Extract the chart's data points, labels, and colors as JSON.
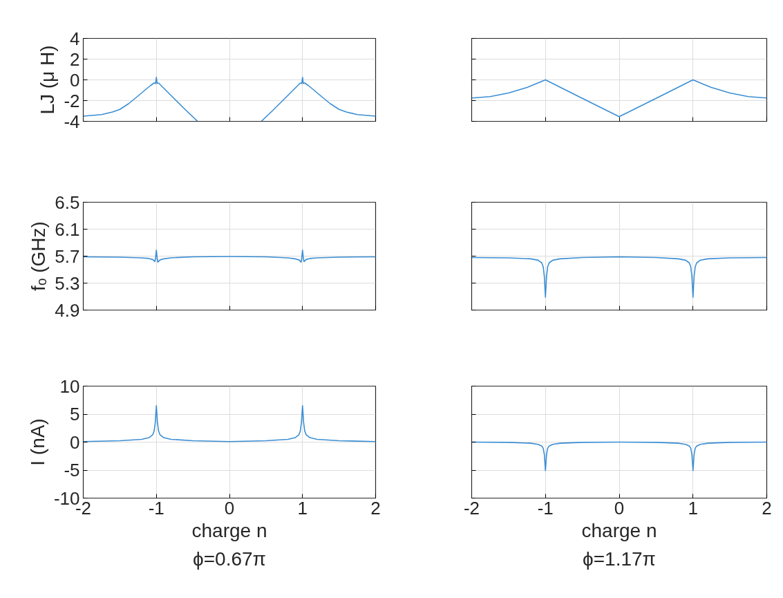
{
  "chart_data": [
    {
      "type": "line",
      "ylabel": "LJ (μ H)",
      "color": "#3b8ed4",
      "grid": true,
      "tick_labels": "y",
      "xlim": [
        -2,
        2
      ],
      "ylim": [
        -4,
        4
      ],
      "xticks": [
        -2,
        -1,
        0,
        1,
        2
      ],
      "yticks": [
        -4,
        -2,
        0,
        2,
        4
      ],
      "x": [
        -2,
        -1.75,
        -1.6,
        -1.5,
        -1.38,
        -1.25,
        -1.15,
        -1.08,
        -1.03,
        -1.01,
        -1.0,
        -0.99,
        -0.97,
        -0.8,
        -0.6,
        -0.436,
        0,
        0.436,
        0.6,
        0.8,
        0.97,
        0.99,
        1.0,
        1.01,
        1.03,
        1.08,
        1.15,
        1.25,
        1.38,
        1.5,
        1.6,
        1.75,
        2
      ],
      "values": [
        -3.5,
        -3.35,
        -3.1,
        -2.85,
        -2.3,
        -1.55,
        -0.95,
        -0.55,
        -0.3,
        -0.35,
        0.25,
        -0.35,
        -0.3,
        -1.5,
        -2.9,
        -4,
        null,
        -4,
        -2.9,
        -1.5,
        -0.3,
        -0.35,
        0.25,
        -0.35,
        -0.3,
        -0.55,
        -0.95,
        -1.55,
        -2.3,
        -2.85,
        -3.1,
        -3.35,
        -3.5
      ]
    },
    {
      "type": "line",
      "color": "#3b8ed4",
      "grid": true,
      "tick_labels": false,
      "xlim": [
        -2,
        2
      ],
      "ylim": [
        -4,
        4
      ],
      "xticks": [
        -2,
        -1,
        0,
        1,
        2
      ],
      "yticks": [
        -4,
        -2,
        0,
        2,
        4
      ],
      "x": [
        -2,
        -1.75,
        -1.5,
        -1.25,
        -1,
        -0.5,
        0,
        0.5,
        1,
        1.25,
        1.5,
        1.75,
        2
      ],
      "values": [
        -1.75,
        -1.62,
        -1.27,
        -0.74,
        0,
        -1.78,
        -3.55,
        -1.78,
        0,
        -0.74,
        -1.27,
        -1.62,
        -1.75
      ]
    },
    {
      "type": "line",
      "ylabel": "fₒ (GHz)",
      "color": "#3b8ed4",
      "grid": true,
      "tick_labels": "y",
      "xlim": [
        -2,
        2
      ],
      "ylim": [
        4.9,
        6.5
      ],
      "xticks": [
        -2,
        -1,
        0,
        1,
        2
      ],
      "yticks": [
        4.9,
        5.3,
        5.7,
        6.1,
        6.5
      ],
      "x": [
        -2,
        -1.5,
        -1.2,
        -1.1,
        -1.05,
        -1.02,
        -1.01,
        -1.0,
        -0.99,
        -0.98,
        -0.95,
        -0.9,
        -0.8,
        -0.5,
        0,
        0.5,
        0.8,
        0.9,
        0.95,
        0.98,
        0.99,
        1.0,
        1.01,
        1.02,
        1.05,
        1.1,
        1.2,
        1.5,
        2
      ],
      "values": [
        5.69,
        5.685,
        5.675,
        5.665,
        5.65,
        5.62,
        5.68,
        5.79,
        5.68,
        5.61,
        5.645,
        5.66,
        5.675,
        5.69,
        5.695,
        5.69,
        5.675,
        5.66,
        5.645,
        5.61,
        5.68,
        5.79,
        5.68,
        5.62,
        5.65,
        5.665,
        5.675,
        5.685,
        5.69
      ]
    },
    {
      "type": "line",
      "color": "#3b8ed4",
      "grid": true,
      "tick_labels": false,
      "xlim": [
        -2,
        2
      ],
      "ylim": [
        4.9,
        6.5
      ],
      "xticks": [
        -2,
        -1,
        0,
        1,
        2
      ],
      "yticks": [
        4.9,
        5.3,
        5.7,
        6.1,
        6.5
      ],
      "x": [
        -2,
        -1.5,
        -1.2,
        -1.1,
        -1.05,
        -1.03,
        -1.015,
        -1.0,
        -0.985,
        -0.97,
        -0.95,
        -0.9,
        -0.8,
        -0.5,
        0,
        0.5,
        0.8,
        0.9,
        0.95,
        0.97,
        0.985,
        1.0,
        1.015,
        1.03,
        1.05,
        1.1,
        1.2,
        1.5,
        2
      ],
      "values": [
        5.68,
        5.675,
        5.66,
        5.64,
        5.6,
        5.54,
        5.4,
        5.09,
        5.4,
        5.54,
        5.6,
        5.64,
        5.66,
        5.68,
        5.69,
        5.68,
        5.66,
        5.64,
        5.6,
        5.54,
        5.4,
        5.09,
        5.4,
        5.54,
        5.6,
        5.64,
        5.66,
        5.675,
        5.68
      ]
    },
    {
      "type": "line",
      "xlabel": "charge n",
      "ylabel": "I (nA)",
      "annotations": [
        "ϕ=0.67π"
      ],
      "color": "#3b8ed4",
      "grid": true,
      "xlim": [
        -2,
        2
      ],
      "ylim": [
        -10,
        10
      ],
      "xticks": [
        -2,
        -1,
        0,
        1,
        2
      ],
      "yticks": [
        -10,
        -5,
        0,
        5,
        10
      ],
      "x": [
        -2,
        -1.5,
        -1.2,
        -1.1,
        -1.05,
        -1.03,
        -1.015,
        -1.0,
        -0.985,
        -0.97,
        -0.95,
        -0.9,
        -0.8,
        -0.5,
        0,
        0.5,
        0.8,
        0.9,
        0.95,
        0.97,
        0.985,
        1.0,
        1.015,
        1.03,
        1.05,
        1.1,
        1.2,
        1.5,
        2
      ],
      "values": [
        0.1,
        0.25,
        0.5,
        0.8,
        1.3,
        2,
        3.5,
        6.5,
        3.5,
        2,
        1.3,
        0.8,
        0.5,
        0.25,
        0.1,
        0.25,
        0.5,
        0.8,
        1.3,
        2,
        3.5,
        6.5,
        3.5,
        2,
        1.3,
        0.8,
        0.5,
        0.25,
        0.1
      ]
    },
    {
      "type": "line",
      "xlabel": "charge n",
      "annotations": [
        "ϕ=1.17π"
      ],
      "color": "#3b8ed4",
      "grid": true,
      "tick_labels": "x",
      "xlim": [
        -2,
        2
      ],
      "ylim": [
        -10,
        10
      ],
      "xticks": [
        -2,
        -1,
        0,
        1,
        2
      ],
      "yticks": [
        -10,
        -5,
        0,
        5,
        10
      ],
      "x": [
        -2,
        -1.5,
        -1.2,
        -1.1,
        -1.05,
        -1.03,
        -1.015,
        -1.0,
        -0.985,
        -0.97,
        -0.95,
        -0.9,
        -0.8,
        -0.5,
        0,
        0.5,
        0.8,
        0.9,
        0.95,
        0.97,
        0.985,
        1.0,
        1.015,
        1.03,
        1.05,
        1.1,
        1.2,
        1.5,
        2
      ],
      "values": [
        0,
        -0.05,
        -0.2,
        -0.4,
        -0.7,
        -1.1,
        -2.2,
        -5.1,
        -2.2,
        -1.1,
        -0.7,
        -0.4,
        -0.2,
        -0.05,
        0,
        -0.05,
        -0.2,
        -0.4,
        -0.7,
        -1.1,
        -2.2,
        -5.1,
        -2.2,
        -1.1,
        -0.7,
        -0.4,
        -0.2,
        -0.05,
        0
      ]
    }
  ]
}
